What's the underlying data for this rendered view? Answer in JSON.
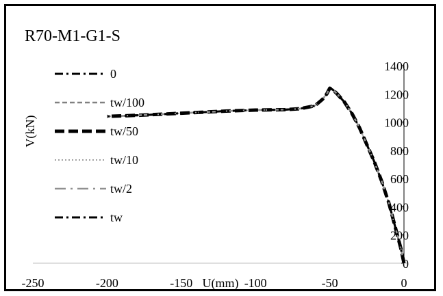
{
  "chart_data": {
    "type": "line",
    "title": "R70-M1-G1-S",
    "xlabel": "U(mm)",
    "ylabel": "V(kN)",
    "xlim": [
      -250,
      0
    ],
    "ylim": [
      0,
      1400
    ],
    "x_ticks": [
      "-250",
      "-200",
      "-150",
      "-100",
      "-50",
      "0"
    ],
    "y_ticks": [
      "0",
      "200",
      "400",
      "600",
      "800",
      "1000",
      "1200",
      "1400"
    ],
    "grid": false,
    "legend_position": "left",
    "series": [
      {
        "name": "0",
        "style": "dash-dot",
        "color": "#000000",
        "x": [
          0,
          -2,
          -5,
          -10,
          -15,
          -20,
          -25,
          -30,
          -35,
          -40,
          -45,
          -48,
          -50,
          -52,
          -55,
          -60,
          -70,
          -80,
          -100,
          -120,
          -150,
          -175,
          -200
        ],
        "y": [
          0,
          100,
          220,
          420,
          580,
          720,
          840,
          960,
          1060,
          1140,
          1200,
          1230,
          1240,
          1200,
          1160,
          1115,
          1095,
          1088,
          1085,
          1078,
          1063,
          1050,
          1040
        ]
      },
      {
        "name": "tw/100",
        "style": "dashed",
        "color": "#808080",
        "x": [
          0,
          -2,
          -5,
          -10,
          -15,
          -20,
          -25,
          -30,
          -35,
          -40,
          -45,
          -48,
          -50,
          -52,
          -55,
          -60,
          -70,
          -80,
          -100,
          -120,
          -150,
          -175,
          -200
        ],
        "y": [
          0,
          100,
          220,
          420,
          580,
          720,
          840,
          960,
          1060,
          1140,
          1200,
          1230,
          1240,
          1200,
          1160,
          1115,
          1095,
          1088,
          1085,
          1078,
          1063,
          1050,
          1040
        ]
      },
      {
        "name": "tw/50",
        "style": "thick-dashed",
        "color": "#000000",
        "x": [
          0,
          -2,
          -5,
          -10,
          -15,
          -20,
          -25,
          -30,
          -35,
          -40,
          -45,
          -48,
          -50,
          -52,
          -55,
          -60,
          -70,
          -80,
          -100,
          -120,
          -150,
          -175,
          -200
        ],
        "y": [
          0,
          100,
          220,
          420,
          580,
          720,
          840,
          960,
          1060,
          1140,
          1200,
          1230,
          1240,
          1200,
          1160,
          1115,
          1095,
          1088,
          1085,
          1078,
          1063,
          1050,
          1040
        ]
      },
      {
        "name": "tw/10",
        "style": "dotted",
        "color": "#a0a0a0",
        "x": [
          0,
          -2,
          -5,
          -10,
          -15,
          -20,
          -25,
          -30,
          -35,
          -40,
          -45,
          -48,
          -50,
          -52,
          -55,
          -60,
          -70,
          -80,
          -100,
          -120,
          -150,
          -175,
          -200
        ],
        "y": [
          0,
          100,
          220,
          420,
          580,
          720,
          840,
          960,
          1060,
          1140,
          1200,
          1230,
          1240,
          1200,
          1160,
          1115,
          1095,
          1088,
          1085,
          1078,
          1063,
          1050,
          1040
        ]
      },
      {
        "name": "tw/2",
        "style": "long-dash-dot",
        "color": "#909090",
        "x": [
          0,
          -2,
          -5,
          -10,
          -15,
          -20,
          -25,
          -30,
          -35,
          -40,
          -45,
          -48,
          -50,
          -52,
          -55,
          -60,
          -70,
          -80,
          -100,
          -120,
          -150,
          -175,
          -200
        ],
        "y": [
          0,
          100,
          220,
          420,
          580,
          720,
          840,
          960,
          1060,
          1140,
          1200,
          1230,
          1240,
          1200,
          1160,
          1115,
          1095,
          1088,
          1085,
          1078,
          1063,
          1050,
          1040
        ]
      },
      {
        "name": "tw",
        "style": "dash-dot",
        "color": "#000000",
        "x": [
          0,
          -2,
          -5,
          -10,
          -15,
          -20,
          -25,
          -30,
          -35,
          -40,
          -45,
          -48,
          -50,
          -52,
          -55,
          -60,
          -70,
          -80,
          -100,
          -120,
          -150,
          -175,
          -200
        ],
        "y": [
          0,
          100,
          220,
          420,
          580,
          720,
          840,
          960,
          1060,
          1140,
          1200,
          1230,
          1240,
          1200,
          1160,
          1115,
          1095,
          1088,
          1085,
          1078,
          1063,
          1050,
          1040
        ]
      }
    ]
  }
}
